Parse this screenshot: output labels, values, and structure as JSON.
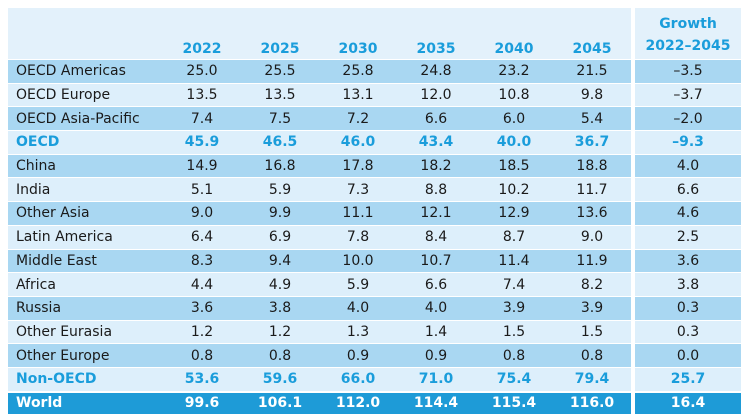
{
  "table": {
    "header": {
      "label": "",
      "years": [
        "2022",
        "2025",
        "2030",
        "2035",
        "2040",
        "2045"
      ],
      "growth_line1": "Growth",
      "growth_line2": "2022–2045"
    },
    "rows": [
      {
        "label": "OECD Americas",
        "style": "mid",
        "values": [
          "25.0",
          "25.5",
          "25.8",
          "24.8",
          "23.2",
          "21.5"
        ],
        "growth": "–3.5"
      },
      {
        "label": "OECD Europe",
        "style": "light",
        "values": [
          "13.5",
          "13.5",
          "13.1",
          "12.0",
          "10.8",
          "9.8"
        ],
        "growth": "–3.7"
      },
      {
        "label": "OECD Asia-Pacific",
        "style": "mid",
        "values": [
          "7.4",
          "7.5",
          "7.2",
          "6.6",
          "6.0",
          "5.4"
        ],
        "growth": "–2.0"
      },
      {
        "label": "OECD",
        "style": "aggregate",
        "values": [
          "45.9",
          "46.5",
          "46.0",
          "43.4",
          "40.0",
          "36.7"
        ],
        "growth": "–9.3"
      },
      {
        "label": "China",
        "style": "mid",
        "values": [
          "14.9",
          "16.8",
          "17.8",
          "18.2",
          "18.5",
          "18.8"
        ],
        "growth": "4.0"
      },
      {
        "label": "India",
        "style": "light",
        "values": [
          "5.1",
          "5.9",
          "7.3",
          "8.8",
          "10.2",
          "11.7"
        ],
        "growth": "6.6"
      },
      {
        "label": "Other Asia",
        "style": "mid",
        "values": [
          "9.0",
          "9.9",
          "11.1",
          "12.1",
          "12.9",
          "13.6"
        ],
        "growth": "4.6"
      },
      {
        "label": "Latin America",
        "style": "light",
        "values": [
          "6.4",
          "6.9",
          "7.8",
          "8.4",
          "8.7",
          "9.0"
        ],
        "growth": "2.5"
      },
      {
        "label": "Middle East",
        "style": "mid",
        "values": [
          "8.3",
          "9.4",
          "10.0",
          "10.7",
          "11.4",
          "11.9"
        ],
        "growth": "3.6"
      },
      {
        "label": "Africa",
        "style": "light",
        "values": [
          "4.4",
          "4.9",
          "5.9",
          "6.6",
          "7.4",
          "8.2"
        ],
        "growth": "3.8"
      },
      {
        "label": "Russia",
        "style": "mid",
        "values": [
          "3.6",
          "3.8",
          "4.0",
          "4.0",
          "3.9",
          "3.9"
        ],
        "growth": "0.3"
      },
      {
        "label": "Other Eurasia",
        "style": "light",
        "values": [
          "1.2",
          "1.2",
          "1.3",
          "1.4",
          "1.5",
          "1.5"
        ],
        "growth": "0.3"
      },
      {
        "label": "Other Europe",
        "style": "mid",
        "values": [
          "0.8",
          "0.8",
          "0.9",
          "0.9",
          "0.8",
          "0.8"
        ],
        "growth": "0.0"
      },
      {
        "label": "Non-OECD",
        "style": "aggregate",
        "values": [
          "53.6",
          "59.6",
          "66.0",
          "71.0",
          "75.4",
          "79.4"
        ],
        "growth": "25.7"
      },
      {
        "label": "World",
        "style": "world",
        "values": [
          "99.6",
          "106.1",
          "112.0",
          "114.4",
          "115.4",
          "116.0"
        ],
        "growth": "16.4"
      }
    ]
  }
}
